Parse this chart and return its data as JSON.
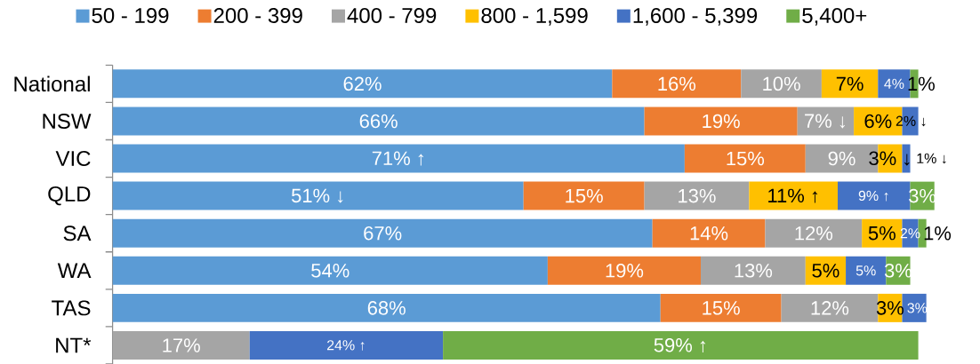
{
  "chart_data": {
    "type": "bar",
    "orientation": "horizontal",
    "stacked": true,
    "categories": [
      "National",
      "NSW",
      "VIC",
      "QLD",
      "SA",
      "WA",
      "TAS",
      "NT*"
    ],
    "series": [
      {
        "name": "50 - 199",
        "color": "#5b9bd5",
        "values": [
          62,
          66,
          71,
          51,
          67,
          54,
          68,
          null
        ],
        "value_labels": [
          "62%",
          "66%",
          "71% ↑",
          "51% ↓",
          "67%",
          "54%",
          "68%",
          null
        ]
      },
      {
        "name": "200 - 399",
        "color": "#ed7d31",
        "values": [
          16,
          19,
          15,
          15,
          14,
          19,
          15,
          null
        ],
        "value_labels": [
          "16%",
          "19%",
          "15%",
          "15%",
          "14%",
          "19%",
          "15%",
          null
        ]
      },
      {
        "name": "400 - 799",
        "color": "#a5a5a5",
        "values": [
          10,
          7,
          9,
          13,
          12,
          13,
          12,
          17
        ],
        "value_labels": [
          "10%",
          "7% ↓",
          "9%",
          "13%",
          "12%",
          "13%",
          "12%",
          "17%"
        ]
      },
      {
        "name": "800 - 1,599",
        "color": "#ffc000",
        "values": [
          7,
          6,
          3,
          11,
          5,
          5,
          3,
          null
        ],
        "value_labels": [
          "7%",
          "6%",
          "3% ↓",
          "11% ↑",
          "5%",
          "5%",
          "3%",
          null
        ]
      },
      {
        "name": "1,600 - 5,399",
        "color": "#4472c4",
        "values": [
          4,
          2,
          1,
          9,
          2,
          5,
          3,
          24
        ],
        "value_labels": [
          "4%",
          "2% ↓",
          "1% ↓",
          "9% ↑",
          "2%",
          "5%",
          "3%",
          "24% ↑"
        ]
      },
      {
        "name": "5,400+",
        "color": "#70ad47",
        "values": [
          1,
          null,
          null,
          3,
          1,
          3,
          null,
          59
        ],
        "value_labels": [
          "1%",
          null,
          null,
          "3%",
          "1%",
          "3%",
          null,
          "59% ↑"
        ]
      }
    ],
    "legend": "top",
    "tick_labels": "y"
  }
}
